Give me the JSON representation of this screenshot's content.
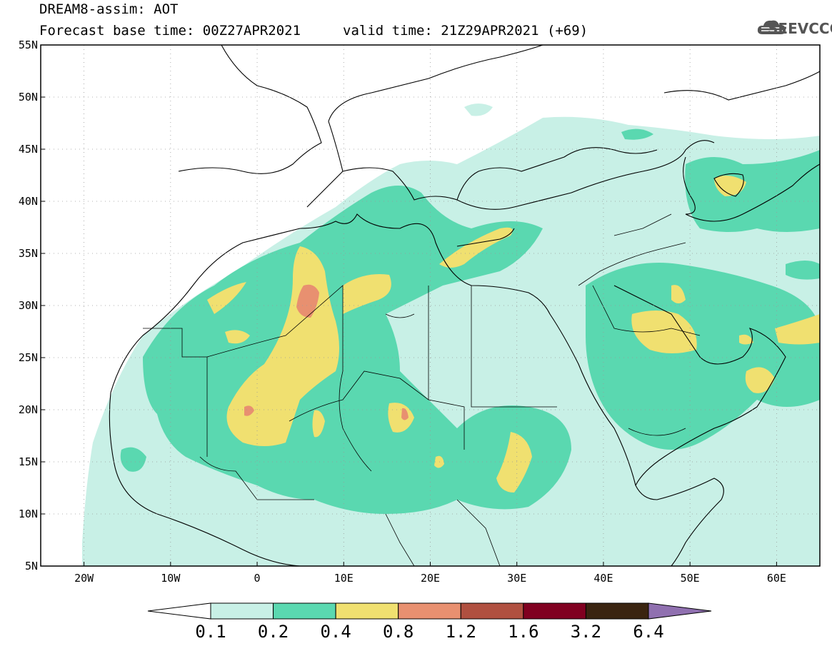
{
  "header": {
    "line1": "DREAM8-assim: AOT",
    "line2": "Forecast base time: 00Z27APR2021",
    "valid": "valid time: 21Z29APR2021 (+69)"
  },
  "logo": {
    "text": "SEEVCCC",
    "icon": "cloud-logo-icon"
  },
  "map": {
    "lon_range": [
      -25,
      65
    ],
    "lat_range": [
      5,
      55
    ],
    "lat_ticks": [
      {
        "value": 55,
        "label": "55N"
      },
      {
        "value": 50,
        "label": "50N"
      },
      {
        "value": 45,
        "label": "45N"
      },
      {
        "value": 40,
        "label": "40N"
      },
      {
        "value": 35,
        "label": "35N"
      },
      {
        "value": 30,
        "label": "30N"
      },
      {
        "value": 25,
        "label": "25N"
      },
      {
        "value": 20,
        "label": "20N"
      },
      {
        "value": 15,
        "label": "15N"
      },
      {
        "value": 10,
        "label": "10N"
      },
      {
        "value": 5,
        "label": "5N"
      }
    ],
    "lon_ticks": [
      {
        "value": -20,
        "label": "20W"
      },
      {
        "value": -10,
        "label": "10W"
      },
      {
        "value": 0,
        "label": "0"
      },
      {
        "value": 10,
        "label": "10E"
      },
      {
        "value": 20,
        "label": "20E"
      },
      {
        "value": 30,
        "label": "30E"
      },
      {
        "value": 40,
        "label": "40E"
      },
      {
        "value": 50,
        "label": "50E"
      },
      {
        "value": 60,
        "label": "60E"
      }
    ],
    "grid": true,
    "colors": {
      "c01": "#c8f0e6",
      "c02": "#5ad8b0",
      "c04": "#f0e070",
      "c08": "#e89070",
      "c12": "#b05040",
      "c16": "#800020",
      "c32": "#3a2410",
      "c64": "#9070b0"
    }
  },
  "colorbar": {
    "labels": [
      "0.1",
      "0.2",
      "0.4",
      "0.8",
      "1.2",
      "1.6",
      "3.2",
      "6.4"
    ],
    "colors": [
      "#c8f0e6",
      "#5ad8b0",
      "#f0e070",
      "#e89070",
      "#b05040",
      "#800020",
      "#3a2410"
    ],
    "under_color": "#ffffff",
    "over_color": "#9070b0"
  }
}
